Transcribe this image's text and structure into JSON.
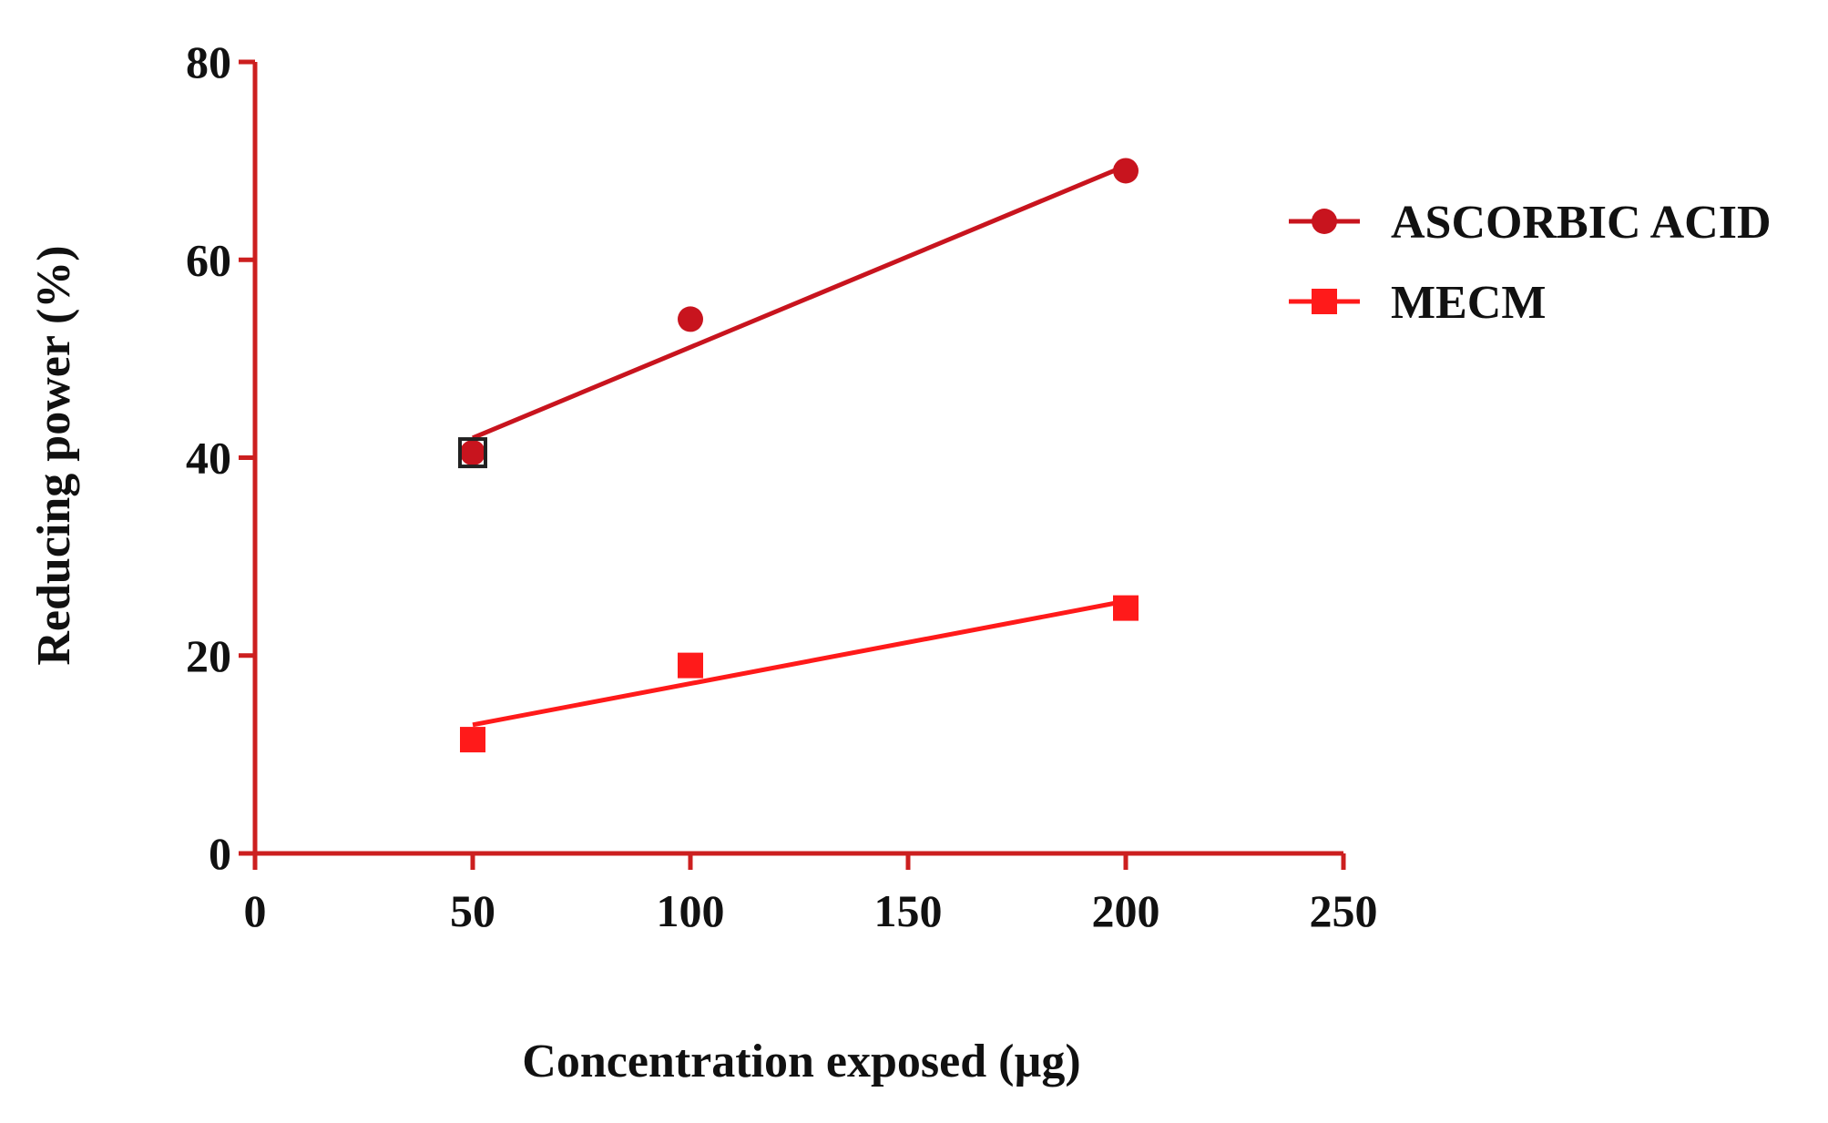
{
  "chart_data": {
    "type": "scatter",
    "title": "",
    "xlabel": "Concentration exposed (µg)",
    "ylabel": "Reducing power (%)",
    "xlim": [
      0,
      250
    ],
    "ylim": [
      0,
      80
    ],
    "xticks": [
      0,
      50,
      100,
      150,
      200,
      250
    ],
    "yticks": [
      0,
      20,
      40,
      60,
      80
    ],
    "grid": false,
    "legend_position": "right",
    "series": [
      {
        "name": "ASCORBIC ACID",
        "marker": "circle",
        "color": "#c8141e",
        "x": [
          50,
          100,
          200
        ],
        "y": [
          40.5,
          54,
          69
        ],
        "fit": {
          "x": [
            50,
            200
          ],
          "y": [
            42,
            69.5
          ]
        }
      },
      {
        "name": "MECM",
        "marker": "square",
        "color": "#ff1a1a",
        "x": [
          50,
          100,
          200
        ],
        "y": [
          11.5,
          19,
          24.8
        ],
        "fit": {
          "x": [
            50,
            200
          ],
          "y": [
            13,
            25.5
          ]
        }
      }
    ]
  }
}
